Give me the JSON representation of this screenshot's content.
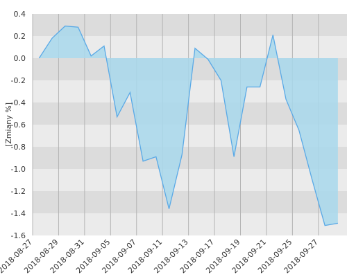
{
  "chart_data": {
    "type": "area",
    "y_label": "[Zmiany %]",
    "x": [
      0,
      1,
      2,
      3,
      4,
      5,
      6,
      7,
      8,
      9,
      10,
      11,
      12,
      13,
      14,
      15,
      16,
      17,
      18,
      19,
      20,
      21,
      22,
      23
    ],
    "series": [
      {
        "color": "#5aa9e6",
        "fill": "#a8d8ec",
        "values": [
          0.0,
          0.18,
          0.29,
          0.28,
          0.02,
          0.11,
          -0.53,
          -0.31,
          -0.93,
          -0.89,
          -1.36,
          -0.87,
          0.09,
          -0.01,
          -0.2,
          -0.89,
          -0.26,
          -0.26,
          0.21,
          -0.37,
          -0.65,
          -1.09,
          -1.51,
          -1.49
        ]
      }
    ],
    "xlim": [
      -0.5,
      23.7
    ],
    "xticks": [
      {
        "value": -0.5,
        "label": "2018-08-27"
      },
      {
        "value": 1.5,
        "label": "2018-08-29"
      },
      {
        "value": 3.5,
        "label": "2018-08-31"
      },
      {
        "value": 5.5,
        "label": "2018-09-05"
      },
      {
        "value": 7.5,
        "label": "2018-09-07"
      },
      {
        "value": 9.5,
        "label": "2018-09-11"
      },
      {
        "value": 11.5,
        "label": "2018-09-13"
      },
      {
        "value": 13.5,
        "label": "2018-09-17"
      },
      {
        "value": 15.5,
        "label": "2018-09-19"
      },
      {
        "value": 17.5,
        "label": "2018-09-21"
      },
      {
        "value": 19.5,
        "label": "2018-09-25"
      },
      {
        "value": 21.5,
        "label": "2018-09-27"
      }
    ],
    "ylim": [
      -1.6,
      0.4
    ],
    "yticks": [
      {
        "value": 0.4,
        "label": "0.4"
      },
      {
        "value": 0.2,
        "label": "0.2"
      },
      {
        "value": 0,
        "label": "0.0"
      },
      {
        "value": -0.2,
        "label": "-0.2"
      },
      {
        "value": -0.4,
        "label": "-0.4"
      },
      {
        "value": -0.6,
        "label": "-0.6"
      },
      {
        "value": -0.8,
        "label": "-0.8"
      },
      {
        "value": -1.0,
        "label": "-1.0"
      },
      {
        "value": -1.2,
        "label": "-1.2"
      },
      {
        "value": -1.4,
        "label": "-1.4"
      },
      {
        "value": -1.6,
        "label": "-1.6"
      }
    ],
    "grid": true
  }
}
